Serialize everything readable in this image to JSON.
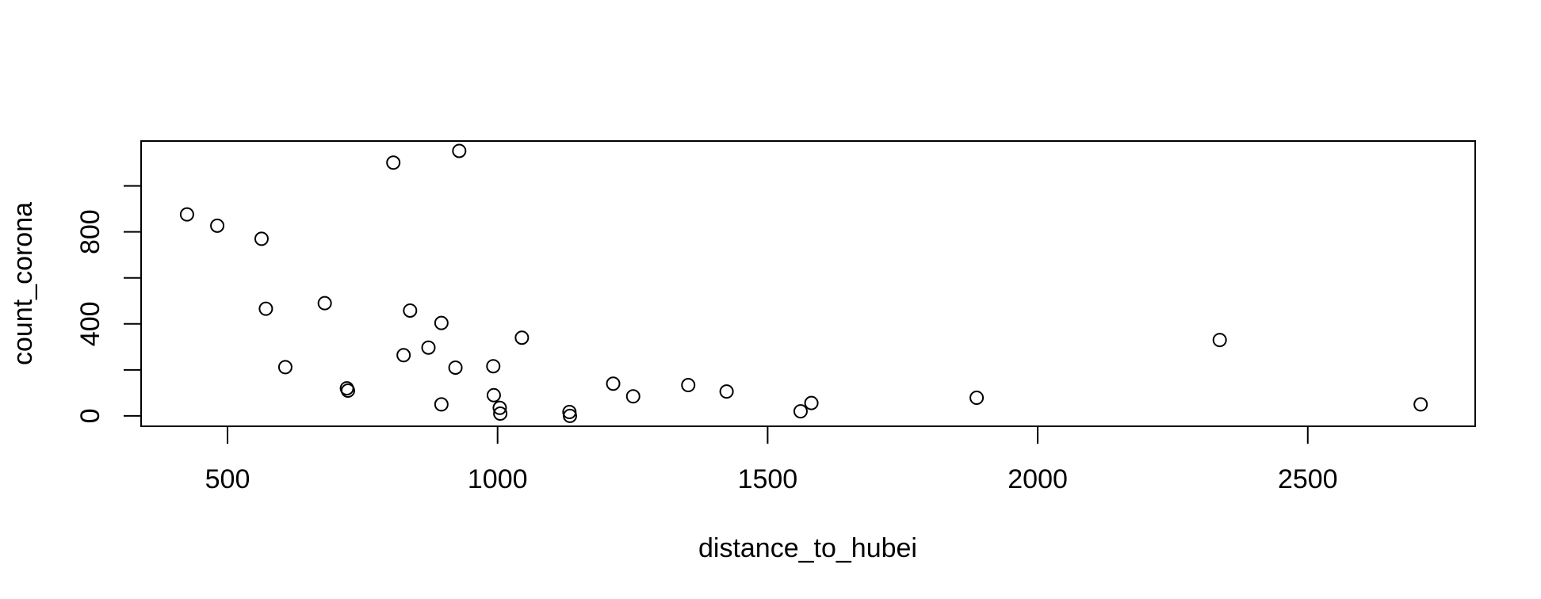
{
  "chart_data": {
    "type": "scatter",
    "xlabel": "distance_to_hubei",
    "ylabel": "count_corona",
    "xlim": [
      340,
      2810
    ],
    "ylim": [
      -45,
      1195
    ],
    "xticks": [
      500,
      1000,
      1500,
      2000,
      2500
    ],
    "yticks": [
      0,
      200,
      400,
      600,
      800,
      1000
    ],
    "ytick_labels": [
      "0",
      "",
      "400",
      "",
      "800",
      ""
    ],
    "grid": false,
    "legend": "none",
    "marker": "open-circle",
    "points": [
      {
        "x": 425,
        "y": 876
      },
      {
        "x": 481,
        "y": 827
      },
      {
        "x": 563,
        "y": 770
      },
      {
        "x": 571,
        "y": 466
      },
      {
        "x": 607,
        "y": 212
      },
      {
        "x": 680,
        "y": 490
      },
      {
        "x": 721,
        "y": 120
      },
      {
        "x": 723,
        "y": 110
      },
      {
        "x": 807,
        "y": 1101
      },
      {
        "x": 826,
        "y": 264
      },
      {
        "x": 838,
        "y": 458
      },
      {
        "x": 872,
        "y": 297
      },
      {
        "x": 896,
        "y": 404
      },
      {
        "x": 896,
        "y": 50
      },
      {
        "x": 922,
        "y": 210
      },
      {
        "x": 929,
        "y": 1152
      },
      {
        "x": 992,
        "y": 216
      },
      {
        "x": 993,
        "y": 90
      },
      {
        "x": 1004,
        "y": 35
      },
      {
        "x": 1005,
        "y": 10
      },
      {
        "x": 1045,
        "y": 340
      },
      {
        "x": 1133,
        "y": 17
      },
      {
        "x": 1134,
        "y": 0
      },
      {
        "x": 1214,
        "y": 140
      },
      {
        "x": 1251,
        "y": 85
      },
      {
        "x": 1353,
        "y": 134
      },
      {
        "x": 1424,
        "y": 106
      },
      {
        "x": 1561,
        "y": 20
      },
      {
        "x": 1581,
        "y": 56
      },
      {
        "x": 1887,
        "y": 79
      },
      {
        "x": 2337,
        "y": 330
      },
      {
        "x": 2709,
        "y": 50
      }
    ]
  }
}
